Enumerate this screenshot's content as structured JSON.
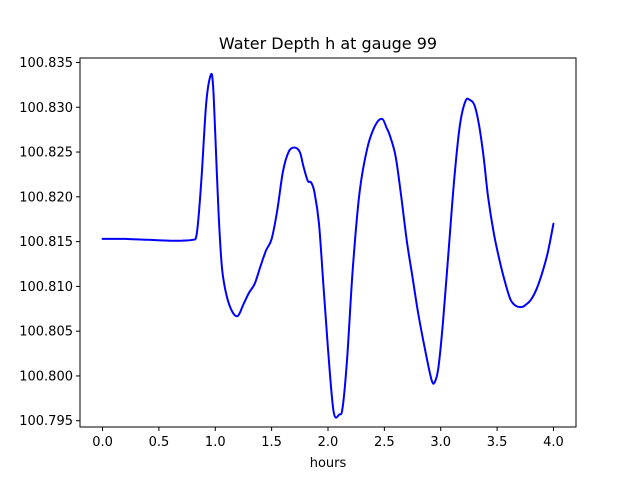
{
  "chart_data": {
    "type": "line",
    "title": "Water Depth h at gauge 99",
    "xlabel": "hours",
    "ylabel": "",
    "xlim": [
      -0.2,
      4.2
    ],
    "ylim": [
      100.7943,
      100.8355
    ],
    "grid": false,
    "x_ticks": [
      0.0,
      0.5,
      1.0,
      1.5,
      2.0,
      2.5,
      3.0,
      3.5,
      4.0
    ],
    "x_tick_labels": [
      "0.0",
      "0.5",
      "1.0",
      "1.5",
      "2.0",
      "2.5",
      "3.0",
      "3.5",
      "4.0"
    ],
    "y_ticks": [
      100.795,
      100.8,
      100.805,
      100.81,
      100.815,
      100.82,
      100.825,
      100.83,
      100.835
    ],
    "y_tick_labels": [
      "100.795",
      "100.800",
      "100.805",
      "100.810",
      "100.815",
      "100.820",
      "100.825",
      "100.830",
      "100.835"
    ],
    "series": [
      {
        "color": "#0000ff",
        "x": [
          0.0,
          0.2,
          0.4,
          0.6,
          0.7,
          0.8,
          0.83,
          0.85,
          0.88,
          0.92,
          0.96,
          0.98,
          1.0,
          1.03,
          1.06,
          1.1,
          1.15,
          1.2,
          1.25,
          1.3,
          1.35,
          1.4,
          1.45,
          1.5,
          1.55,
          1.6,
          1.65,
          1.7,
          1.75,
          1.78,
          1.82,
          1.85,
          1.88,
          1.92,
          1.96,
          2.0,
          2.05,
          2.1,
          2.13,
          2.17,
          2.22,
          2.28,
          2.35,
          2.42,
          2.48,
          2.52,
          2.55,
          2.6,
          2.65,
          2.7,
          2.75,
          2.8,
          2.86,
          2.92,
          2.95,
          2.98,
          3.02,
          3.07,
          3.12,
          3.17,
          3.22,
          3.26,
          3.3,
          3.34,
          3.38,
          3.42,
          3.47,
          3.52,
          3.57,
          3.62,
          3.67,
          3.72,
          3.75,
          3.8,
          3.85,
          3.9,
          3.95,
          4.0
        ],
        "y": [
          100.8153,
          100.8153,
          100.8152,
          100.8151,
          100.8151,
          100.8152,
          100.8155,
          100.8175,
          100.8225,
          100.8305,
          100.8336,
          100.8325,
          100.827,
          100.818,
          100.812,
          100.809,
          100.8072,
          100.8067,
          100.808,
          100.8093,
          100.8103,
          100.8122,
          100.814,
          100.8153,
          100.8185,
          100.8228,
          100.825,
          100.8255,
          100.825,
          100.8235,
          100.8218,
          100.8216,
          100.8205,
          100.817,
          100.81,
          100.803,
          100.796,
          100.7957,
          100.7965,
          100.802,
          100.812,
          100.8205,
          100.8255,
          100.828,
          100.8287,
          100.8277,
          100.8268,
          100.8245,
          100.82,
          100.815,
          100.811,
          100.807,
          100.803,
          100.7995,
          100.7994,
          100.801,
          100.806,
          100.814,
          100.822,
          100.828,
          100.8307,
          100.8308,
          100.8302,
          100.828,
          100.8245,
          100.82,
          100.816,
          100.813,
          100.8105,
          100.8085,
          100.8078,
          100.8077,
          100.8079,
          100.8085,
          100.8097,
          100.8115,
          100.8138,
          100.817
        ]
      }
    ]
  }
}
